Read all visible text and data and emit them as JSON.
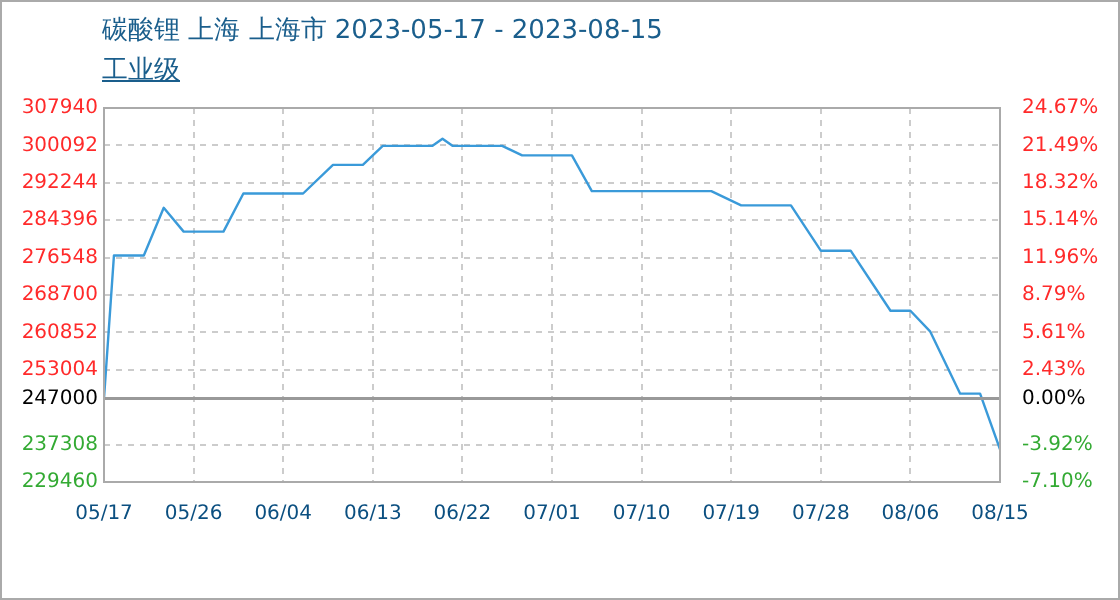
{
  "chart_data": {
    "type": "line",
    "title": "碳酸锂 上海 上海市 2023-05-17 - 2023-08-15",
    "subtitle": "工业级",
    "x": [
      "--05-17",
      "--05-18",
      "--05-21",
      "--05-23",
      "--05-25",
      "--05-29",
      "--05-31",
      "--06-06",
      "--06-09",
      "--06-12",
      "--06-14",
      "--06-19",
      "--06-20",
      "--06-21",
      "--06-26",
      "--06-28",
      "--07-03",
      "--07-05",
      "--07-17",
      "--07-20",
      "--07-25",
      "--07-28",
      "--07-31",
      "--08-04",
      "--08-06",
      "--08-08",
      "--08-11",
      "--08-13",
      "--08-15"
    ],
    "series": [
      {
        "color": "#3a9ad9",
        "values": [
          247000,
          277000,
          277000,
          287000,
          282000,
          282000,
          290000,
          290000,
          296000,
          296000,
          300000,
          300000,
          301500,
          300000,
          300000,
          298000,
          298000,
          290500,
          290500,
          287500,
          287500,
          278000,
          278000,
          265400,
          265400,
          261000,
          248000,
          248000,
          236300
        ]
      }
    ],
    "xlim": [
      "--05-17",
      "--08-15"
    ],
    "xticks": [
      {
        "value": "--05-17",
        "label": "05/17"
      },
      {
        "value": "--05-26",
        "label": "05/26"
      },
      {
        "value": "--06-04",
        "label": "06/04"
      },
      {
        "value": "--06-13",
        "label": "06/13"
      },
      {
        "value": "--06-22",
        "label": "06/22"
      },
      {
        "value": "--07-01",
        "label": "07/01"
      },
      {
        "value": "--07-10",
        "label": "07/10"
      },
      {
        "value": "--07-19",
        "label": "07/19"
      },
      {
        "value": "--07-28",
        "label": "07/28"
      },
      {
        "value": "--08-06",
        "label": "08/06"
      },
      {
        "value": "--08-15",
        "label": "08/15"
      }
    ],
    "ylim": [
      229460,
      307940
    ],
    "yticks": [
      229460,
      237308,
      247000,
      253004,
      260852,
      268700,
      276548,
      284396,
      292244,
      300092,
      307940
    ],
    "y2lim": [
      -7.1,
      24.67
    ],
    "y2ticks": [
      {
        "value": -7.1,
        "label": "-7.10%"
      },
      {
        "value": -3.92,
        "label": "-3.92%"
      },
      {
        "value": 0,
        "label": "0.00%"
      },
      {
        "value": 2.43,
        "label": "2.43%"
      },
      {
        "value": 5.61,
        "label": "5.61%"
      },
      {
        "value": 8.79,
        "label": "8.79%"
      },
      {
        "value": 11.96,
        "label": "11.96%"
      },
      {
        "value": 15.14,
        "label": "15.14%"
      },
      {
        "value": 18.32,
        "label": "18.32%"
      },
      {
        "value": 21.49,
        "label": "21.49%"
      },
      {
        "value": 24.67,
        "label": "24.67%"
      }
    ],
    "ref_lines": [
      {
        "axis": "y",
        "value": 247000,
        "color": "#999999"
      }
    ],
    "grid": true,
    "legend": false,
    "marker": "none",
    "line_style": "solid"
  }
}
